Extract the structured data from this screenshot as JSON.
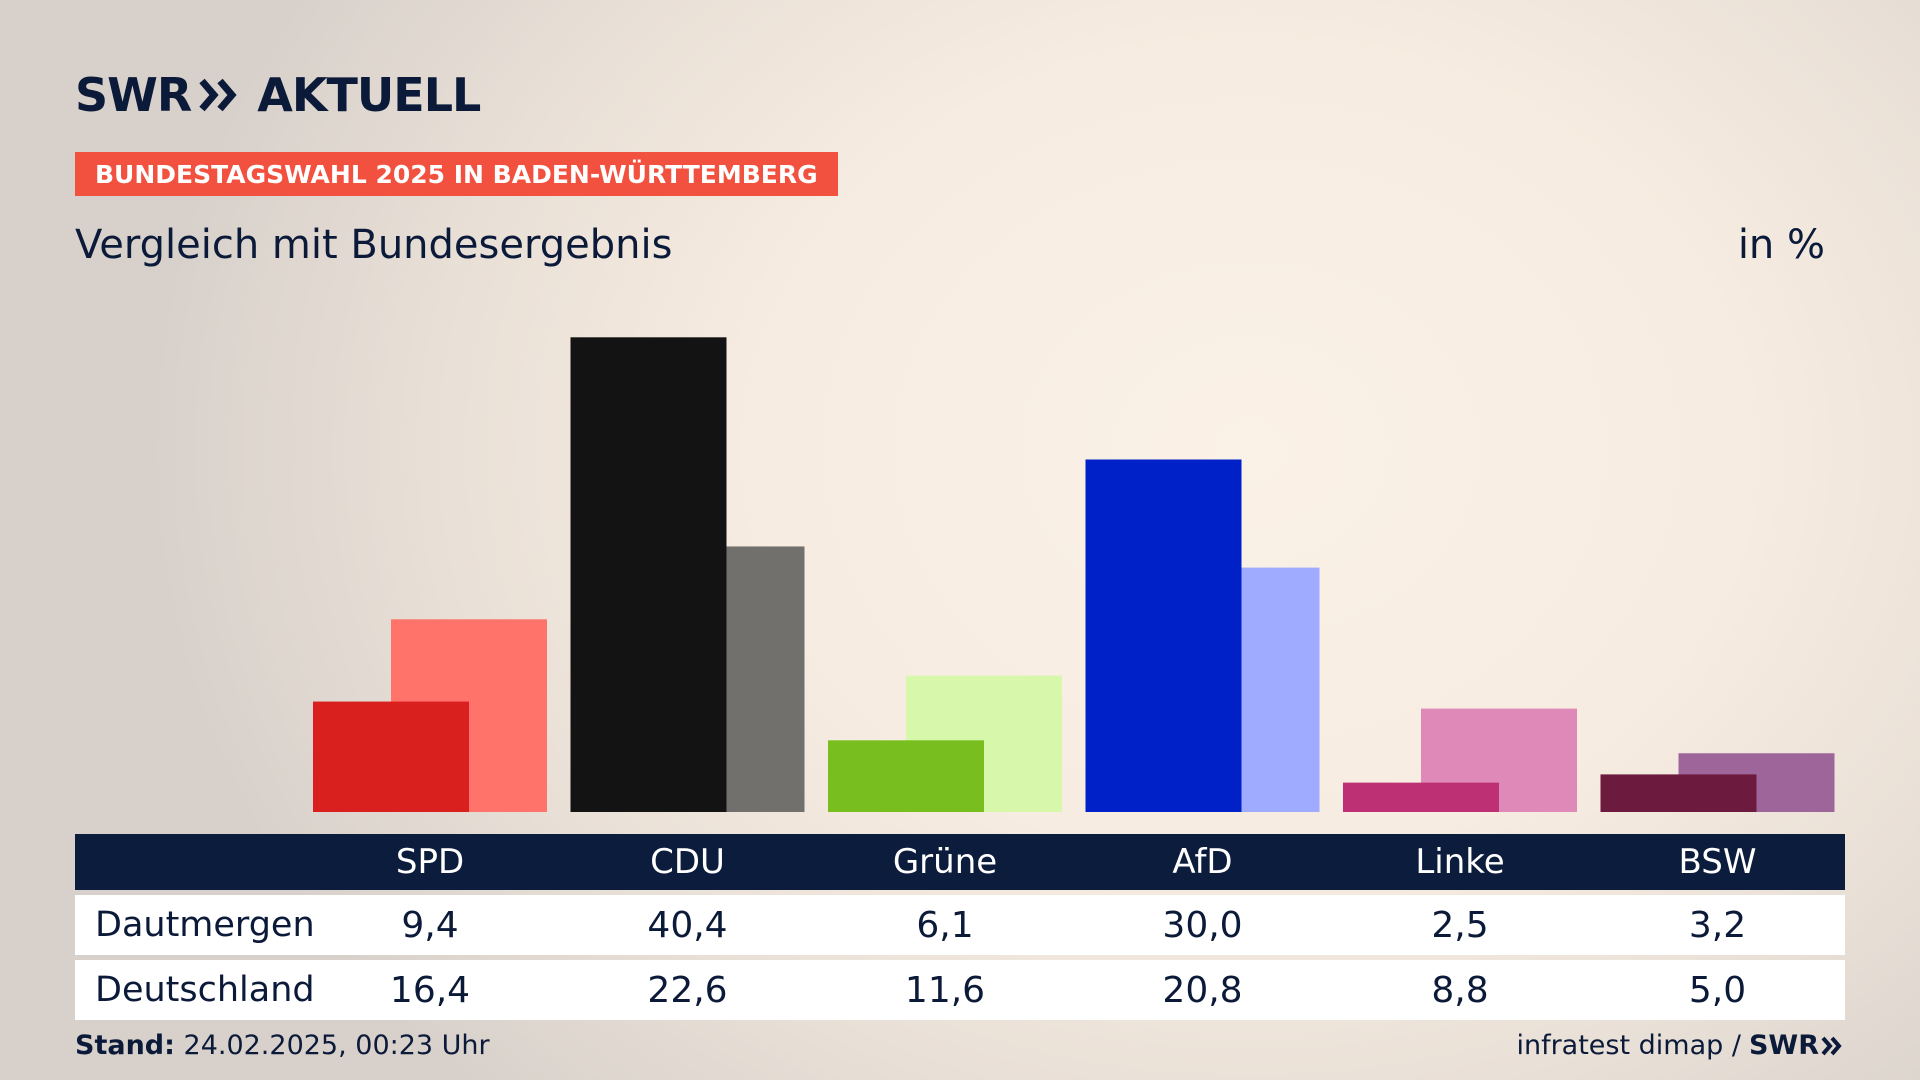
{
  "header": {
    "brand": "SWR",
    "product": "AKTUELL",
    "banner": "BUNDESTAGSWAHL 2025 IN BADEN-WÜRTTEMBERG",
    "subtitle": "Vergleich mit Bundesergebnis",
    "unit": "in %"
  },
  "colors": {
    "navy": "#0c1c3d",
    "banner": "#f2513f"
  },
  "chart_data": {
    "type": "bar",
    "categories": [
      "SPD",
      "CDU",
      "Grüne",
      "AfD",
      "Linke",
      "BSW"
    ],
    "series": [
      {
        "name": "Dautmergen",
        "values": [
          9.4,
          40.4,
          6.1,
          30.0,
          2.5,
          3.2
        ],
        "colors": [
          "#d9201f",
          "#131313",
          "#78be1e",
          "#0021c8",
          "#bd3074",
          "#6c1a3e"
        ]
      },
      {
        "name": "Deutschland",
        "values": [
          16.4,
          22.6,
          11.6,
          20.8,
          8.8,
          5.0
        ],
        "colors": [
          "#ff736a",
          "#72706d",
          "#d7f7ab",
          "#9fabff",
          "#df89b8",
          "#9e659b"
        ]
      }
    ],
    "series_labels": [
      [
        "9,4",
        "40,4",
        "6,1",
        "30,0",
        "2,5",
        "3,2"
      ],
      [
        "16,4",
        "22,6",
        "11,6",
        "20,8",
        "8,8",
        "5,0"
      ]
    ],
    "ylim": [
      0,
      45
    ]
  },
  "footer": {
    "stand_label": "Stand:",
    "stand_value": "24.02.2025, 00:23 Uhr",
    "source": "infratest dimap /",
    "source_brand": "SWR"
  }
}
